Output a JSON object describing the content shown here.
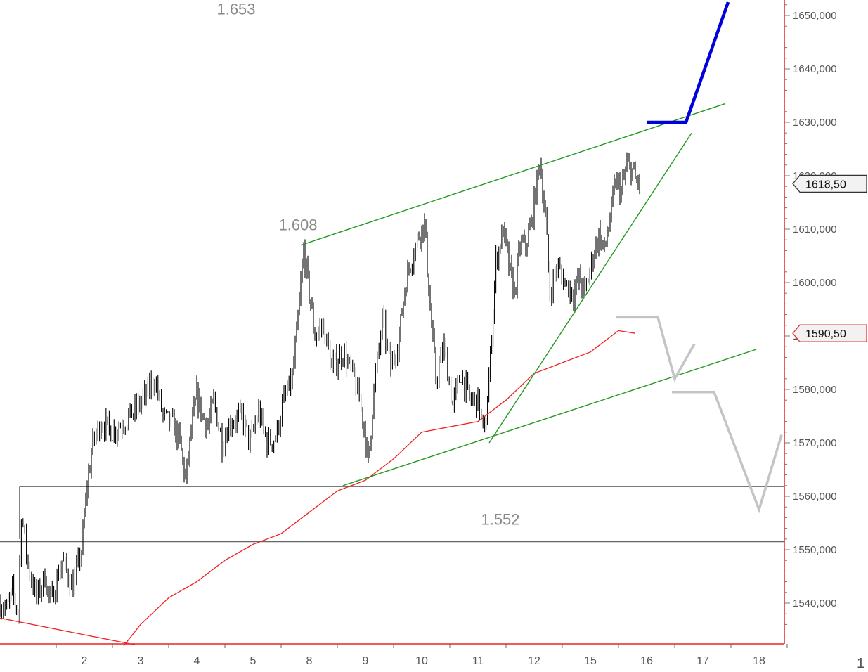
{
  "chart_data": {
    "type": "line",
    "title": "",
    "xlabel": "",
    "ylabel": "",
    "ylim": [
      1532,
      1654
    ],
    "grid": false,
    "x_ticks": [
      {
        "pos": 1.5,
        "label": "2"
      },
      {
        "pos": 2.5,
        "label": "3"
      },
      {
        "pos": 3.5,
        "label": "4"
      },
      {
        "pos": 4.5,
        "label": "5"
      },
      {
        "pos": 5.5,
        "label": "8"
      },
      {
        "pos": 6.5,
        "label": "9"
      },
      {
        "pos": 7.5,
        "label": "10"
      },
      {
        "pos": 8.5,
        "label": "11"
      },
      {
        "pos": 9.5,
        "label": "12"
      },
      {
        "pos": 10.5,
        "label": "15"
      },
      {
        "pos": 11.5,
        "label": "16"
      },
      {
        "pos": 12.5,
        "label": "17"
      },
      {
        "pos": 13.5,
        "label": "18"
      }
    ],
    "y_ticks": [
      {
        "value": 1540,
        "label": "1540,000"
      },
      {
        "value": 1550,
        "label": "1550,000"
      },
      {
        "value": 1560,
        "label": "1560,000"
      },
      {
        "value": 1570,
        "label": "1570,000"
      },
      {
        "value": 1580,
        "label": "1580,000"
      },
      {
        "value": 1590,
        "label": "1590,000"
      },
      {
        "value": 1600,
        "label": "1600,000"
      },
      {
        "value": 1610,
        "label": "1610,000"
      },
      {
        "value": 1620,
        "label": "1620,000"
      },
      {
        "value": 1630,
        "label": "1630,000"
      },
      {
        "value": 1640,
        "label": "1640,000"
      },
      {
        "value": 1650,
        "label": "1650,000"
      }
    ],
    "price_tags": [
      {
        "value": 1618.5,
        "label": "1618,50",
        "color": "#333333"
      },
      {
        "value": 1590.5,
        "label": "1590,50",
        "color": "#e8343a"
      }
    ],
    "level_labels": [
      {
        "text": "1.653",
        "x": 4.2,
        "y": 1650.2
      },
      {
        "text": "1.608",
        "x": 5.3,
        "y": 1609.8
      },
      {
        "text": "1.552",
        "x": 8.9,
        "y": 1554.7
      }
    ],
    "horizontal_levels": [
      {
        "value": 1653.5,
        "x1": 0,
        "x2": 13.95,
        "color": "#666666"
      },
      {
        "value": 1561.8,
        "x1": 0.35,
        "x2": 13.95,
        "color": "#666666"
      },
      {
        "value": 1551.5,
        "x1": 0,
        "x2": 13.95,
        "color": "#666666"
      }
    ],
    "price_key_points": [
      [
        0.0,
        1540
      ],
      [
        0.12,
        1539
      ],
      [
        0.22,
        1542
      ],
      [
        0.32,
        1538
      ],
      [
        0.38,
        1557
      ],
      [
        0.5,
        1547
      ],
      [
        0.65,
        1541
      ],
      [
        0.8,
        1545
      ],
      [
        0.9,
        1540
      ],
      [
        1.1,
        1548
      ],
      [
        1.3,
        1543
      ],
      [
        1.45,
        1550
      ],
      [
        1.55,
        1562
      ],
      [
        1.65,
        1570
      ],
      [
        1.8,
        1574
      ],
      [
        2.0,
        1572
      ],
      [
        2.2,
        1574
      ],
      [
        2.4,
        1576
      ],
      [
        2.6,
        1579
      ],
      [
        2.75,
        1582
      ],
      [
        2.9,
        1575
      ],
      [
        3.1,
        1573
      ],
      [
        3.2,
        1570
      ],
      [
        3.3,
        1563
      ],
      [
        3.4,
        1572
      ],
      [
        3.5,
        1579
      ],
      [
        3.6,
        1575
      ],
      [
        3.7,
        1573
      ],
      [
        3.8,
        1578
      ],
      [
        3.95,
        1570
      ],
      [
        4.1,
        1574
      ],
      [
        4.3,
        1575
      ],
      [
        4.45,
        1570
      ],
      [
        4.6,
        1576
      ],
      [
        4.75,
        1570
      ],
      [
        4.9,
        1571
      ],
      [
        5.05,
        1578
      ],
      [
        5.2,
        1582
      ],
      [
        5.3,
        1593
      ],
      [
        5.4,
        1606
      ],
      [
        5.5,
        1598
      ],
      [
        5.6,
        1590
      ],
      [
        5.75,
        1592
      ],
      [
        5.9,
        1584
      ],
      [
        6.1,
        1587
      ],
      [
        6.3,
        1582
      ],
      [
        6.45,
        1575
      ],
      [
        6.55,
        1566
      ],
      [
        6.65,
        1580
      ],
      [
        6.8,
        1593
      ],
      [
        6.95,
        1584
      ],
      [
        7.1,
        1590
      ],
      [
        7.2,
        1599
      ],
      [
        7.3,
        1604
      ],
      [
        7.45,
        1609
      ],
      [
        7.55,
        1611
      ],
      [
        7.65,
        1595
      ],
      [
        7.75,
        1582
      ],
      [
        7.9,
        1588
      ],
      [
        8.05,
        1577
      ],
      [
        8.2,
        1583
      ],
      [
        8.35,
        1578
      ],
      [
        8.5,
        1578
      ],
      [
        8.62,
        1571
      ],
      [
        8.72,
        1586
      ],
      [
        8.82,
        1604
      ],
      [
        8.95,
        1610
      ],
      [
        9.05,
        1603
      ],
      [
        9.15,
        1598
      ],
      [
        9.25,
        1607
      ],
      [
        9.35,
        1607
      ],
      [
        9.45,
        1611
      ],
      [
        9.55,
        1619
      ],
      [
        9.6,
        1623
      ],
      [
        9.7,
        1612
      ],
      [
        9.78,
        1598
      ],
      [
        9.9,
        1603
      ],
      [
        10.05,
        1600
      ],
      [
        10.2,
        1598
      ],
      [
        10.3,
        1601
      ],
      [
        10.4,
        1598
      ],
      [
        10.55,
        1605
      ],
      [
        10.65,
        1609
      ],
      [
        10.75,
        1606
      ],
      [
        10.85,
        1612
      ],
      [
        10.95,
        1619
      ],
      [
        11.05,
        1617
      ],
      [
        11.15,
        1622
      ],
      [
        11.25,
        1621
      ],
      [
        11.3,
        1619
      ],
      [
        11.4,
        1618.5
      ]
    ],
    "series": [
      {
        "name": "",
        "color": "#ee2222",
        "width": 1.3,
        "points": [
          [
            2.2,
            1532
          ],
          [
            2.5,
            1536
          ],
          [
            3.0,
            1541
          ],
          [
            3.5,
            1544
          ],
          [
            4.0,
            1548
          ],
          [
            4.5,
            1551
          ],
          [
            5.0,
            1553
          ],
          [
            5.5,
            1557
          ],
          [
            6.0,
            1561
          ],
          [
            6.5,
            1563
          ],
          [
            7.0,
            1567
          ],
          [
            7.5,
            1572
          ],
          [
            8.0,
            1573
          ],
          [
            8.5,
            1574
          ],
          [
            9.0,
            1578
          ],
          [
            9.5,
            1583
          ],
          [
            10.0,
            1585
          ],
          [
            10.5,
            1587
          ],
          [
            11.0,
            1591
          ],
          [
            11.3,
            1590.5
          ]
        ]
      },
      {
        "name": "",
        "color": "#ee2222",
        "width": 1.3,
        "points": [
          [
            0.0,
            1537.2
          ],
          [
            2.4,
            1532.2
          ]
        ]
      },
      {
        "name": "",
        "color": "#229922",
        "width": 1.4,
        "points": [
          [
            5.35,
            1607
          ],
          [
            12.9,
            1633.5
          ]
        ]
      },
      {
        "name": "",
        "color": "#229922",
        "width": 1.4,
        "points": [
          [
            6.1,
            1562
          ],
          [
            13.45,
            1587.5
          ]
        ]
      },
      {
        "name": "",
        "color": "#229922",
        "width": 1.4,
        "points": [
          [
            8.7,
            1570
          ],
          [
            12.3,
            1628
          ]
        ]
      },
      {
        "name": "",
        "color": "#0000dd",
        "width": 4.5,
        "points": [
          [
            11.5,
            1630
          ],
          [
            12.2,
            1630
          ],
          [
            12.95,
            1652.5
          ]
        ]
      },
      {
        "name": "",
        "color": "#c4c4c4",
        "width": 3.5,
        "points": [
          [
            10.95,
            1593.5
          ],
          [
            11.7,
            1593.5
          ],
          [
            12.0,
            1582
          ],
          [
            12.35,
            1588.5
          ]
        ]
      },
      {
        "name": "",
        "color": "#c4c4c4",
        "width": 3.5,
        "points": [
          [
            11.95,
            1579.5
          ],
          [
            12.7,
            1579.5
          ],
          [
            13.5,
            1557.5
          ],
          [
            13.9,
            1571.5
          ]
        ]
      }
    ],
    "corner_label": "1"
  }
}
